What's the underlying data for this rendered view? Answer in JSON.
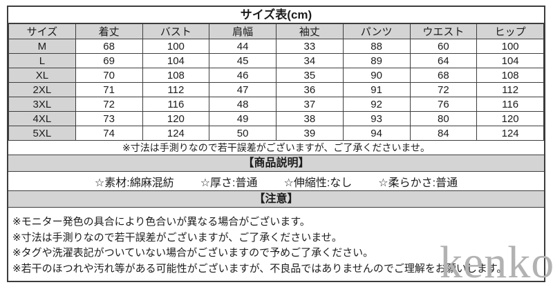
{
  "title": "サイズ表(cm)",
  "size_table": {
    "columns": [
      "サイズ",
      "着丈",
      "バスト",
      "肩幅",
      "袖丈",
      "パンツ",
      "ウエスト",
      "ヒップ"
    ],
    "rows": [
      {
        "size": "M",
        "values": [
          "68",
          "100",
          "44",
          "33",
          "88",
          "60",
          "100"
        ]
      },
      {
        "size": "L",
        "values": [
          "69",
          "104",
          "45",
          "34",
          "89",
          "64",
          "104"
        ]
      },
      {
        "size": "XL",
        "values": [
          "70",
          "108",
          "46",
          "35",
          "90",
          "68",
          "108"
        ]
      },
      {
        "size": "2XL",
        "values": [
          "71",
          "112",
          "47",
          "36",
          "91",
          "72",
          "112"
        ]
      },
      {
        "size": "3XL",
        "values": [
          "72",
          "116",
          "48",
          "37",
          "92",
          "76",
          "116"
        ]
      },
      {
        "size": "4XL",
        "values": [
          "73",
          "120",
          "49",
          "38",
          "93",
          "80",
          "120"
        ]
      },
      {
        "size": "5XL",
        "values": [
          "74",
          "124",
          "50",
          "39",
          "94",
          "84",
          "124"
        ]
      }
    ],
    "note": "※寸法は手測りなので若干誤差がございますが、ご了承くださいませ。"
  },
  "description": {
    "header": "【商品説明】",
    "items": [
      "☆素材:綿麻混紡",
      "☆厚さ:普通",
      "☆伸縮性:なし",
      "☆柔らかさ:普通"
    ]
  },
  "caution": {
    "header": "【注意】",
    "notes": [
      "※モニター発色の具合により色合いが異なる場合がございます。",
      "※寸法は手測りなので若干誤差がございますが、ご了承くださいませ。",
      "※タグや洗濯表記がついていない場合がございますので予めご了承ください。",
      "※若干のほつれや汚れ等がある可能性がございますが、不良品ではありませんのでご理解をお願いします。"
    ]
  },
  "watermark": "kenko",
  "colors": {
    "header_bg": "#d4d4d4",
    "border": "#3c3c3c",
    "watermark": "#b2b2b2",
    "text": "#1b1b1b"
  }
}
